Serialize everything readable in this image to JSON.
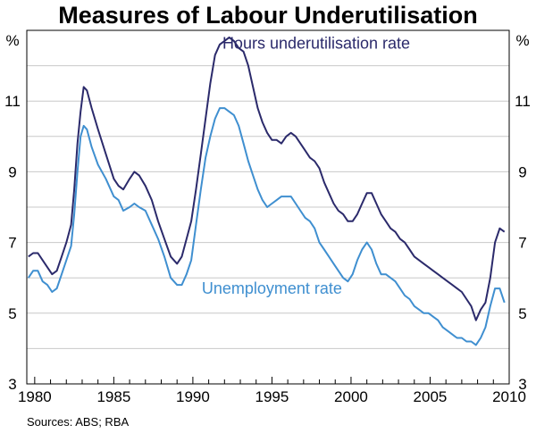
{
  "chart_data": {
    "type": "line",
    "title": "Measures of Labour Underutilisation",
    "unit_left": "%",
    "unit_right": "%",
    "source": "Sources: ABS; RBA",
    "xlim": [
      1979.5,
      2010
    ],
    "ylim": [
      3,
      13
    ],
    "yticks": [
      3,
      5,
      7,
      9,
      11
    ],
    "xticks": [
      1980,
      1985,
      1990,
      1995,
      2000,
      2005,
      2010
    ],
    "grid": true,
    "colors": {
      "hours": "#2b2a6b",
      "unemployment": "#3f8fd0"
    },
    "series": [
      {
        "name": "Hours underutilisation rate",
        "key": "hours",
        "x": [
          1979.6,
          1979.9,
          1980.2,
          1980.5,
          1980.8,
          1981.1,
          1981.4,
          1981.7,
          1982.0,
          1982.3,
          1982.5,
          1982.7,
          1982.9,
          1983.1,
          1983.3,
          1983.6,
          1984.0,
          1984.5,
          1985.0,
          1985.3,
          1985.6,
          1986.0,
          1986.3,
          1986.6,
          1987.0,
          1987.4,
          1987.8,
          1988.2,
          1988.6,
          1989.0,
          1989.3,
          1989.6,
          1989.9,
          1990.2,
          1990.5,
          1990.8,
          1991.1,
          1991.4,
          1991.7,
          1992.0,
          1992.3,
          1992.6,
          1992.9,
          1993.2,
          1993.5,
          1993.8,
          1994.1,
          1994.4,
          1994.7,
          1995.0,
          1995.3,
          1995.6,
          1995.9,
          1996.2,
          1996.5,
          1996.8,
          1997.1,
          1997.4,
          1997.7,
          1998.0,
          1998.3,
          1998.6,
          1998.9,
          1999.2,
          1999.5,
          1999.8,
          2000.1,
          2000.4,
          2000.7,
          2001.0,
          2001.3,
          2001.6,
          2001.9,
          2002.2,
          2002.5,
          2002.8,
          2003.1,
          2003.4,
          2003.7,
          2004.0,
          2004.3,
          2004.6,
          2004.9,
          2005.2,
          2005.5,
          2005.8,
          2006.1,
          2006.4,
          2006.7,
          2007.0,
          2007.3,
          2007.6,
          2007.9,
          2008.2,
          2008.5,
          2008.8,
          2009.1,
          2009.4,
          2009.7
        ],
        "values": [
          6.6,
          6.7,
          6.7,
          6.5,
          6.3,
          6.1,
          6.2,
          6.6,
          7.0,
          7.5,
          8.5,
          9.8,
          10.7,
          11.4,
          11.3,
          10.8,
          10.2,
          9.5,
          8.8,
          8.6,
          8.5,
          8.8,
          9.0,
          8.9,
          8.6,
          8.2,
          7.6,
          7.1,
          6.6,
          6.4,
          6.6,
          7.1,
          7.6,
          8.5,
          9.5,
          10.5,
          11.5,
          12.3,
          12.6,
          12.7,
          12.8,
          12.7,
          12.5,
          12.4,
          12.0,
          11.4,
          10.8,
          10.4,
          10.1,
          9.9,
          9.9,
          9.8,
          10.0,
          10.1,
          10.0,
          9.8,
          9.6,
          9.4,
          9.3,
          9.1,
          8.7,
          8.4,
          8.1,
          7.9,
          7.8,
          7.6,
          7.6,
          7.8,
          8.1,
          8.4,
          8.4,
          8.1,
          7.8,
          7.6,
          7.4,
          7.3,
          7.1,
          7.0,
          6.8,
          6.6,
          6.5,
          6.4,
          6.3,
          6.2,
          6.1,
          6.0,
          5.9,
          5.8,
          5.7,
          5.6,
          5.4,
          5.2,
          4.8,
          5.1,
          5.3,
          6.0,
          7.0,
          7.4,
          7.3
        ]
      },
      {
        "name": "Unemployment rate",
        "key": "unemployment",
        "x": [
          1979.6,
          1979.9,
          1980.2,
          1980.5,
          1980.8,
          1981.1,
          1981.4,
          1981.7,
          1982.0,
          1982.3,
          1982.5,
          1982.7,
          1982.9,
          1983.1,
          1983.3,
          1983.6,
          1984.0,
          1984.5,
          1985.0,
          1985.3,
          1985.6,
          1986.0,
          1986.3,
          1986.6,
          1987.0,
          1987.4,
          1987.8,
          1988.2,
          1988.6,
          1989.0,
          1989.3,
          1989.6,
          1989.9,
          1990.2,
          1990.5,
          1990.8,
          1991.1,
          1991.4,
          1991.7,
          1992.0,
          1992.3,
          1992.6,
          1992.9,
          1993.2,
          1993.5,
          1993.8,
          1994.1,
          1994.4,
          1994.7,
          1995.0,
          1995.3,
          1995.6,
          1995.9,
          1996.2,
          1996.5,
          1996.8,
          1997.1,
          1997.4,
          1997.7,
          1998.0,
          1998.3,
          1998.6,
          1998.9,
          1999.2,
          1999.5,
          1999.8,
          2000.1,
          2000.4,
          2000.7,
          2001.0,
          2001.3,
          2001.6,
          2001.9,
          2002.2,
          2002.5,
          2002.8,
          2003.1,
          2003.4,
          2003.7,
          2004.0,
          2004.3,
          2004.6,
          2004.9,
          2005.2,
          2005.5,
          2005.8,
          2006.1,
          2006.4,
          2006.7,
          2007.0,
          2007.3,
          2007.6,
          2007.9,
          2008.2,
          2008.5,
          2008.8,
          2009.1,
          2009.4,
          2009.7
        ],
        "values": [
          6.0,
          6.2,
          6.2,
          5.9,
          5.8,
          5.6,
          5.7,
          6.1,
          6.5,
          6.9,
          7.8,
          9.0,
          10.0,
          10.3,
          10.2,
          9.7,
          9.2,
          8.8,
          8.3,
          8.2,
          7.9,
          8.0,
          8.1,
          8.0,
          7.9,
          7.5,
          7.1,
          6.6,
          6.0,
          5.8,
          5.8,
          6.1,
          6.5,
          7.5,
          8.5,
          9.4,
          10.0,
          10.5,
          10.8,
          10.8,
          10.7,
          10.6,
          10.3,
          9.8,
          9.3,
          8.9,
          8.5,
          8.2,
          8.0,
          8.1,
          8.2,
          8.3,
          8.3,
          8.3,
          8.1,
          7.9,
          7.7,
          7.6,
          7.4,
          7.0,
          6.8,
          6.6,
          6.4,
          6.2,
          6.0,
          5.9,
          6.1,
          6.5,
          6.8,
          7.0,
          6.8,
          6.4,
          6.1,
          6.1,
          6.0,
          5.9,
          5.7,
          5.5,
          5.4,
          5.2,
          5.1,
          5.0,
          5.0,
          4.9,
          4.8,
          4.6,
          4.5,
          4.4,
          4.3,
          4.3,
          4.2,
          4.2,
          4.1,
          4.3,
          4.6,
          5.2,
          5.7,
          5.7,
          5.3
        ]
      }
    ],
    "annotations": [
      {
        "text": "Hours underutilisation rate",
        "series": "hours",
        "x": 1997.8,
        "y": 12.48,
        "anchor": "middle"
      },
      {
        "text": "Unemployment rate",
        "series": "unemployment",
        "x": 1995.0,
        "y": 5.55,
        "anchor": "middle"
      }
    ]
  }
}
